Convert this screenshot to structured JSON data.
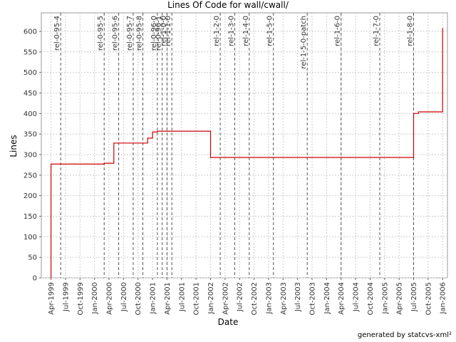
{
  "chart_data": {
    "type": "line",
    "title": "Lines Of Code for wall/cwall/",
    "x_label": "Date",
    "y_label": "Lines",
    "footer": "generated by statcvs-xml²",
    "x": [
      "1999-04",
      "1999-04",
      "2000-03",
      "2000-03",
      "2000-05",
      "2000-05",
      "2000-12",
      "2000-12",
      "2001-01",
      "2001-01",
      "2001-02",
      "2001-02",
      "2002-01",
      "2002-01",
      "2005-07",
      "2005-07",
      "2005-08",
      "2005-08",
      "2006-01",
      "2006-01"
    ],
    "series": [
      {
        "name": "Lines",
        "color": "#cc0000",
        "values": [
          0,
          277,
          277,
          279,
          279,
          328,
          328,
          340,
          340,
          355,
          355,
          357,
          357,
          293,
          293,
          400,
          400,
          404,
          404,
          608
        ]
      }
    ],
    "xlim": [
      "1999-02",
      "2006-02"
    ],
    "xticks": [
      {
        "value": "1999-04",
        "label": "Apr-1999"
      },
      {
        "value": "1999-07",
        "label": "Jul-1999"
      },
      {
        "value": "1999-10",
        "label": "Oct-1999"
      },
      {
        "value": "2000-01",
        "label": "Jan-2000"
      },
      {
        "value": "2000-04",
        "label": "Apr-2000"
      },
      {
        "value": "2000-07",
        "label": "Jul-2000"
      },
      {
        "value": "2000-10",
        "label": "Oct-2000"
      },
      {
        "value": "2001-01",
        "label": "Jan-2001"
      },
      {
        "value": "2001-04",
        "label": "Apr-2001"
      },
      {
        "value": "2001-07",
        "label": "Jul-2001"
      },
      {
        "value": "2001-10",
        "label": "Oct-2001"
      },
      {
        "value": "2002-01",
        "label": "Jan-2002"
      },
      {
        "value": "2002-04",
        "label": "Apr-2002"
      },
      {
        "value": "2002-07",
        "label": "Jul-2002"
      },
      {
        "value": "2002-10",
        "label": "Oct-2002"
      },
      {
        "value": "2003-01",
        "label": "Jan-2003"
      },
      {
        "value": "2003-04",
        "label": "Apr-2003"
      },
      {
        "value": "2003-07",
        "label": "Jul-2003"
      },
      {
        "value": "2003-10",
        "label": "Oct-2003"
      },
      {
        "value": "2004-01",
        "label": "Jan-2004"
      },
      {
        "value": "2004-04",
        "label": "Apr-2004"
      },
      {
        "value": "2004-07",
        "label": "Jul-2004"
      },
      {
        "value": "2004-10",
        "label": "Oct-2004"
      },
      {
        "value": "2005-01",
        "label": "Jan-2005"
      },
      {
        "value": "2005-04",
        "label": "Apr-2005"
      },
      {
        "value": "2005-07",
        "label": "Jul-2005"
      },
      {
        "value": "2005-10",
        "label": "Oct-2005"
      },
      {
        "value": "2006-01",
        "label": "Jan-2006"
      }
    ],
    "ylim": [
      0,
      645
    ],
    "yticks": [
      0,
      50,
      100,
      150,
      200,
      250,
      300,
      350,
      400,
      450,
      500,
      550,
      600
    ],
    "grid": true,
    "annotations": [
      {
        "x": "1999-06",
        "label": "rel-0-95-4"
      },
      {
        "x": "2000-03",
        "label": "rel-0-95-5"
      },
      {
        "x": "2000-06",
        "label": "rel-0-95-6"
      },
      {
        "x": "2000-09",
        "label": "rel-0-95-7"
      },
      {
        "x": "2000-11",
        "label": "rel-0-95-8"
      },
      {
        "x": "2001-02",
        "label": "rel-0-96-0"
      },
      {
        "x": "2001-03",
        "label": "rel-0-96-1"
      },
      {
        "x": "2001-04",
        "label": "rel-1-0-0"
      },
      {
        "x": "2001-05",
        "label": "rel-1-1-0"
      },
      {
        "x": "2002-03",
        "label": "rel-1-2-0"
      },
      {
        "x": "2002-06",
        "label": "rel-1-3-0"
      },
      {
        "x": "2002-09",
        "label": "rel-1-4-0"
      },
      {
        "x": "2003-02",
        "label": "rel-1-5-0"
      },
      {
        "x": "2003-09",
        "label": "rel-1-5-0-patch"
      },
      {
        "x": "2004-04",
        "label": "rel-1-6-0"
      },
      {
        "x": "2004-12",
        "label": "rel-1-7-0"
      },
      {
        "x": "2005-07",
        "label": "rel-1-8-0"
      }
    ]
  }
}
